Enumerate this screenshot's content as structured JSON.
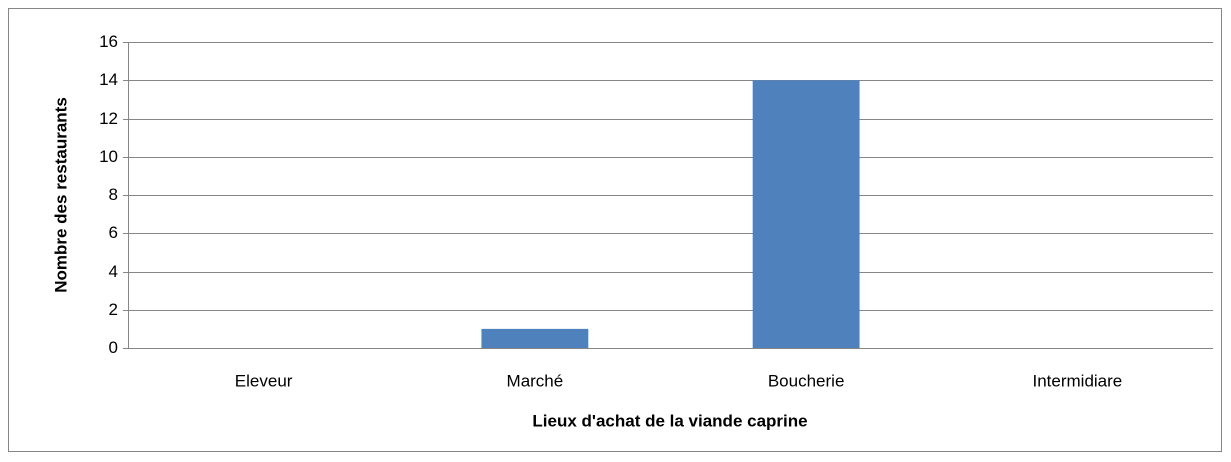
{
  "chart_data": {
    "type": "bar",
    "x_label": "Lieux d'achat de la viande caprine",
    "y_label": "Nombre des restaurants",
    "categories": [
      "Eleveur",
      "Marché",
      "Boucherie",
      "Intermidiare"
    ],
    "values": [
      0,
      1,
      14,
      0
    ],
    "color": "#4f81bd",
    "ylim": [
      0,
      16
    ],
    "yticks": [
      0,
      2,
      4,
      6,
      8,
      10,
      12,
      14,
      16
    ],
    "grid": true
  }
}
